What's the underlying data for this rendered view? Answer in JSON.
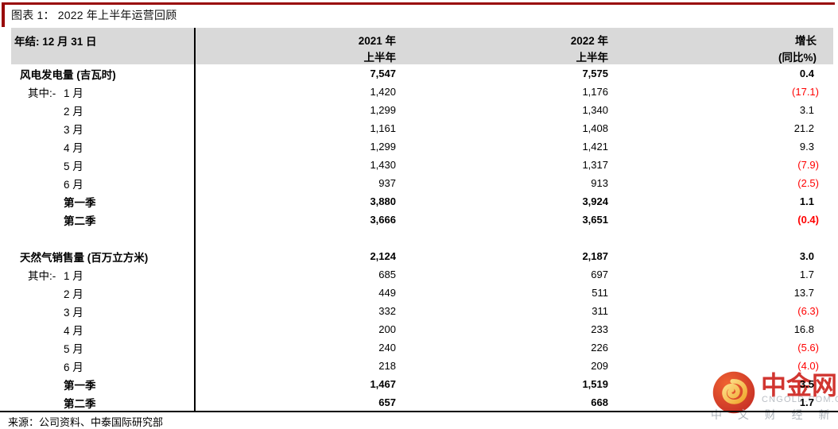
{
  "title": "图表 1： 2022 年上半年运营回顾",
  "source": "来源：公司资料、中泰国际研究部",
  "colors": {
    "accent_dark_red": "#990909",
    "negative_red": "#ff0000",
    "header_gray": "#d9d9d9"
  },
  "table": {
    "header": {
      "label": "年结: 12 月 31 日",
      "columns": [
        {
          "line1": "2021 年",
          "line2": "上半年"
        },
        {
          "line1": "2022 年",
          "line2": "上半年"
        },
        {
          "line1": "增长",
          "line2": "(同比%)"
        }
      ]
    },
    "rows": [
      {
        "label": "风电发电量 (吉瓦时)",
        "prefix": "",
        "indent": 0,
        "bold": true,
        "v2021": "7,547",
        "v2022": "7,575",
        "growth": "0.4",
        "negative": false
      },
      {
        "label": "1 月",
        "prefix": "其中:-",
        "indent": 1,
        "bold": false,
        "v2021": "1,420",
        "v2022": "1,176",
        "growth": "(17.1)",
        "negative": true
      },
      {
        "label": "2 月",
        "prefix": "",
        "indent": 2,
        "bold": false,
        "v2021": "1,299",
        "v2022": "1,340",
        "growth": "3.1",
        "negative": false
      },
      {
        "label": "3 月",
        "prefix": "",
        "indent": 2,
        "bold": false,
        "v2021": "1,161",
        "v2022": "1,408",
        "growth": "21.2",
        "negative": false
      },
      {
        "label": "4 月",
        "prefix": "",
        "indent": 2,
        "bold": false,
        "v2021": "1,299",
        "v2022": "1,421",
        "growth": "9.3",
        "negative": false
      },
      {
        "label": "5 月",
        "prefix": "",
        "indent": 2,
        "bold": false,
        "v2021": "1,430",
        "v2022": "1,317",
        "growth": "(7.9)",
        "negative": true
      },
      {
        "label": "6 月",
        "prefix": "",
        "indent": 2,
        "bold": false,
        "v2021": "937",
        "v2022": "913",
        "growth": "(2.5)",
        "negative": true
      },
      {
        "label": "第一季",
        "prefix": "",
        "indent": 2,
        "bold": true,
        "v2021": "3,880",
        "v2022": "3,924",
        "growth": "1.1",
        "negative": false
      },
      {
        "label": "第二季",
        "prefix": "",
        "indent": 2,
        "bold": true,
        "v2021": "3,666",
        "v2022": "3,651",
        "growth": "(0.4)",
        "negative": true
      },
      {
        "blank": true
      },
      {
        "label": "天然气销售量 (百万立方米)",
        "prefix": "",
        "indent": 0,
        "bold": true,
        "v2021": "2,124",
        "v2022": "2,187",
        "growth": "3.0",
        "negative": false
      },
      {
        "label": "1 月",
        "prefix": "其中:-",
        "indent": 1,
        "bold": false,
        "v2021": "685",
        "v2022": "697",
        "growth": "1.7",
        "negative": false
      },
      {
        "label": "2 月",
        "prefix": "",
        "indent": 2,
        "bold": false,
        "v2021": "449",
        "v2022": "511",
        "growth": "13.7",
        "negative": false
      },
      {
        "label": "3 月",
        "prefix": "",
        "indent": 2,
        "bold": false,
        "v2021": "332",
        "v2022": "311",
        "growth": "(6.3)",
        "negative": true
      },
      {
        "label": "4 月",
        "prefix": "",
        "indent": 2,
        "bold": false,
        "v2021": "200",
        "v2022": "233",
        "growth": "16.8",
        "negative": false
      },
      {
        "label": "5 月",
        "prefix": "",
        "indent": 2,
        "bold": false,
        "v2021": "240",
        "v2022": "226",
        "growth": "(5.6)",
        "negative": true
      },
      {
        "label": "6 月",
        "prefix": "",
        "indent": 2,
        "bold": false,
        "v2021": "218",
        "v2022": "209",
        "growth": "(4.0)",
        "negative": true
      },
      {
        "label": "第一季",
        "prefix": "",
        "indent": 2,
        "bold": true,
        "v2021": "1,467",
        "v2022": "1,519",
        "growth": "3.5",
        "negative": false
      },
      {
        "label": "第二季",
        "prefix": "",
        "indent": 2,
        "bold": true,
        "v2021": "657",
        "v2022": "668",
        "growth": "1.7",
        "negative": false
      }
    ]
  },
  "watermark": {
    "name": "中金网",
    "domain": "CNGOLD.COM.CN",
    "slogan": "中 文 财 经 新 媒 体",
    "logo": "cngold-cloud-logo",
    "logo_red": "#c01f18",
    "logo_gold": "#f0a01f",
    "name_red": "#cf2a24"
  }
}
